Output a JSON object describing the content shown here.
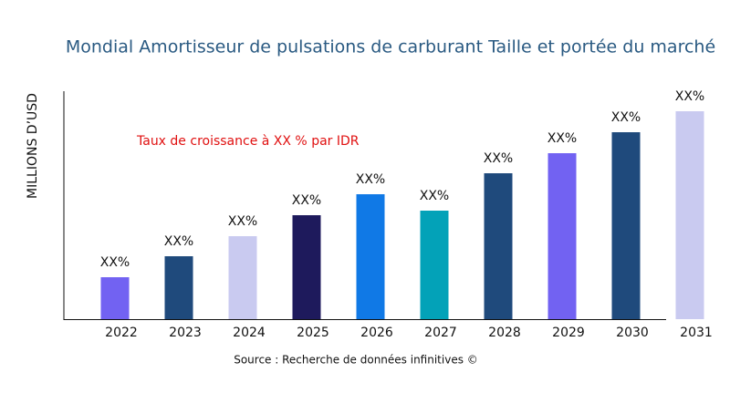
{
  "chart_data": {
    "type": "bar",
    "title": "Mondial Amortisseur de pulsations de carburant Taille et portée du marché",
    "y_label": "MILLIONS D’USD",
    "annotation": "Taux de croissance à XX % par IDR",
    "source": "Source : Recherche de données infinitives ©",
    "categories": [
      "2022",
      "2023",
      "2024",
      "2025",
      "2026",
      "2027",
      "2028",
      "2029",
      "2030",
      "2031"
    ],
    "values": [
      46,
      69,
      91,
      114,
      137,
      119,
      160,
      182,
      205,
      228
    ],
    "value_labels": [
      "XX%",
      "XX%",
      "XX%",
      "XX%",
      "XX%",
      "XX%",
      "XX%",
      "XX%",
      "XX%",
      "XX%"
    ],
    "colors": [
      "#7262f2",
      "#1f4a7c",
      "#c9caf0",
      "#1e1a5c",
      "#1079e6",
      "#03a2b8",
      "#1f4a7c",
      "#7262f2",
      "#1f4a7c",
      "#c9caf0"
    ]
  }
}
